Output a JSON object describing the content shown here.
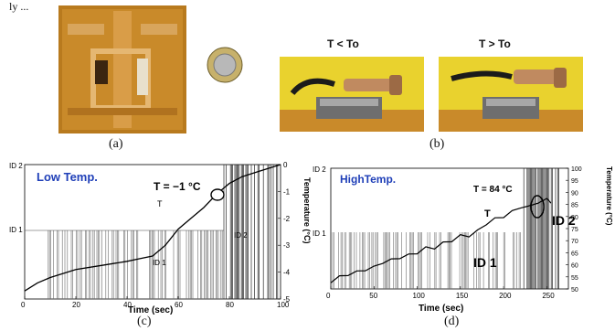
{
  "top_fragment": "ly ...",
  "panels": {
    "a": {
      "caption": "(a)"
    },
    "b": {
      "caption": "(b)",
      "left_label": "T < To",
      "right_label": "T > To"
    },
    "c": {
      "caption": "(c)"
    },
    "d": {
      "caption": "(d)"
    }
  },
  "chart_data": [
    {
      "type": "line",
      "panel": "c",
      "title": "Low Temp.",
      "annotation": "T = −1 °C",
      "curve_label": "T",
      "region_labels": [
        "ID 1",
        "ID 2"
      ],
      "xlabel": "Time (sec)",
      "ylabel_right": "Temperature (°C)",
      "xlim": [
        0,
        100
      ],
      "ylim_left": [
        "ID 1",
        "ID 2"
      ],
      "ylim_right": [
        -5,
        0
      ],
      "x_ticks": [
        "0",
        "20",
        "40",
        "60",
        "80",
        "100"
      ],
      "y_left_ticks": [
        "ID 1",
        "ID 2"
      ],
      "y_right_ticks": [
        "0",
        "-1",
        "-2",
        "-3",
        "-4",
        "-5"
      ],
      "series": [
        {
          "x": [
            0,
            5,
            10,
            20,
            30,
            40,
            45,
            50,
            55,
            60,
            65,
            70,
            75,
            80,
            85,
            90,
            95,
            100
          ],
          "values": [
            -4.7,
            -4.4,
            -4.2,
            -3.9,
            -3.75,
            -3.6,
            -3.5,
            -3.4,
            -3.0,
            -2.4,
            -2.0,
            -1.6,
            -1.1,
            -0.7,
            -0.45,
            -0.3,
            -0.15,
            0
          ]
        }
      ]
    },
    {
      "type": "line",
      "panel": "d",
      "title": "HighTemp.",
      "annotation": "T = 84 °C",
      "curve_label": "T",
      "region_labels": [
        "ID 1",
        "ID 2"
      ],
      "xlabel": "Time (sec)",
      "ylabel_right": "Temperature (°C)",
      "xlim": [
        0,
        275
      ],
      "ylim_left": [
        "ID 1",
        "ID 2"
      ],
      "ylim_right": [
        50,
        100
      ],
      "x_ticks": [
        "0",
        "50",
        "100",
        "150",
        "200",
        "250"
      ],
      "y_left_ticks": [
        "ID 1",
        "ID 2"
      ],
      "y_right_ticks": [
        "100",
        "95",
        "90",
        "85",
        "80",
        "75",
        "70",
        "65",
        "60",
        "55",
        "50"
      ],
      "series": [
        {
          "x": [
            0,
            10,
            20,
            30,
            40,
            50,
            60,
            70,
            80,
            90,
            100,
            110,
            120,
            130,
            140,
            150,
            160,
            170,
            180,
            190,
            200,
            210,
            220,
            230,
            240,
            250,
            255
          ],
          "values": [
            53,
            55,
            56,
            57,
            58,
            59,
            61,
            62,
            63,
            64,
            65,
            67,
            67,
            69,
            70,
            72,
            72,
            74,
            77,
            79,
            80,
            82,
            84,
            84,
            86,
            87,
            86
          ]
        }
      ]
    }
  ]
}
